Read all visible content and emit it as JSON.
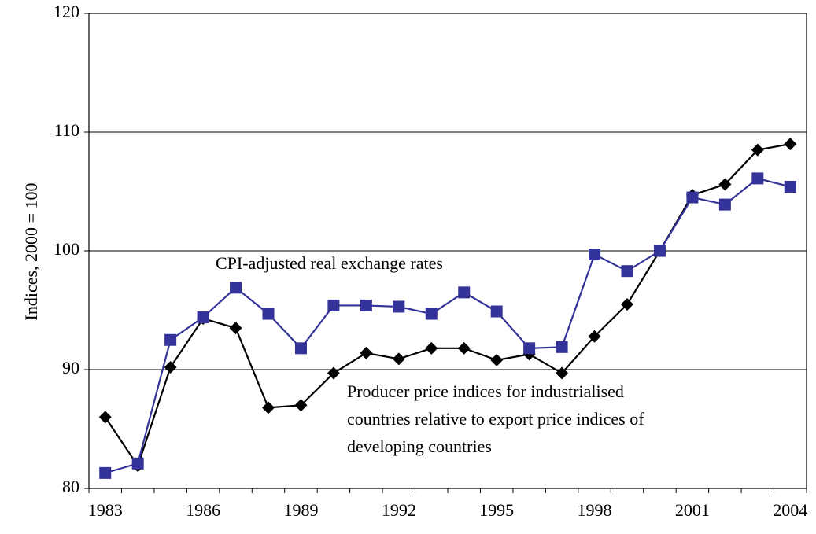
{
  "chart_data": {
    "type": "line",
    "y_label": "Indices, 2000 = 100",
    "categories": [
      "1983",
      null,
      null,
      "1986",
      null,
      null,
      "1989",
      null,
      null,
      "1992",
      null,
      null,
      "1995",
      null,
      null,
      "1998",
      null,
      null,
      "2001",
      null,
      null,
      "2004"
    ],
    "series": [
      {
        "color": "#000000",
        "marker": "diamond",
        "values": [
          86.0,
          81.9,
          90.2,
          94.3,
          93.5,
          86.8,
          87.0,
          89.7,
          91.4,
          90.9,
          91.8,
          91.8,
          90.8,
          91.3,
          89.7,
          92.8,
          95.5,
          100,
          104.7,
          105.6,
          108.5,
          109.0
        ]
      },
      {
        "color": "#333399",
        "marker": "square",
        "values": [
          81.3,
          82.1,
          92.5,
          94.4,
          96.9,
          94.7,
          91.8,
          95.4,
          95.4,
          95.3,
          94.7,
          96.5,
          94.9,
          91.8,
          91.9,
          99.7,
          98.3,
          100,
          104.5,
          103.9,
          106.1,
          105.4
        ]
      }
    ],
    "annotations": [
      {
        "lines": [
          "CPI-adjusted real exchange rates"
        ]
      },
      {
        "lines": [
          "Producer price indices for industrialised",
          "countries relative to export price indices of",
          "developing countries"
        ]
      }
    ],
    "ylim": [
      80,
      120
    ],
    "yticks": [
      80,
      90,
      100,
      110,
      120
    ],
    "grid": true
  }
}
